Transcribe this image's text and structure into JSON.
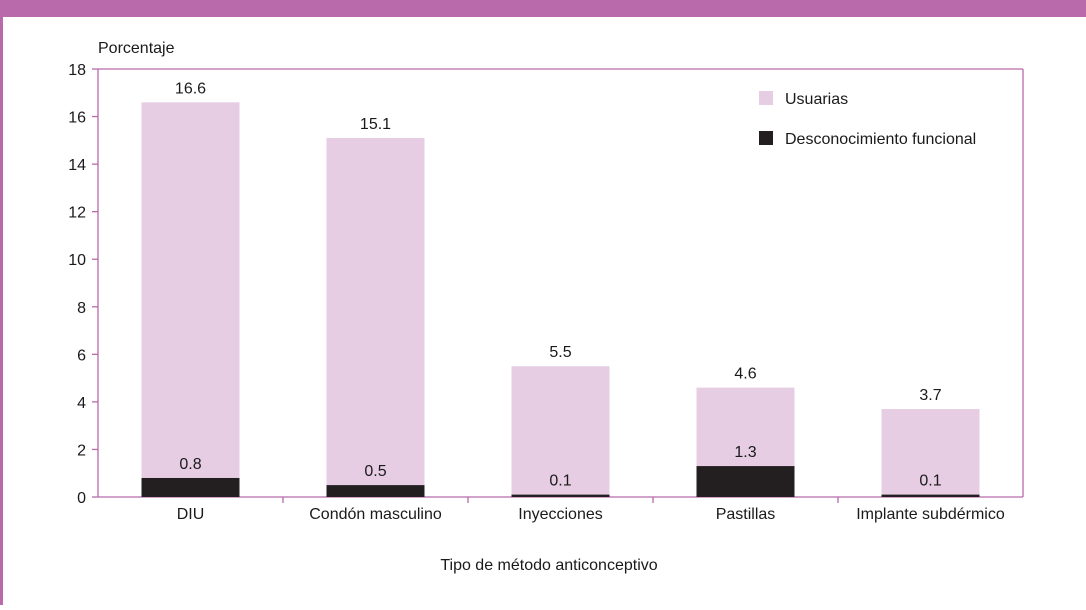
{
  "colors": {
    "frame": "#b86aaa",
    "usuarias": "#e6cde4",
    "desconocimiento": "#231f20",
    "axis": "#b86aaa",
    "text": "#1a1a1a"
  },
  "chart_data": {
    "type": "bar",
    "title": "",
    "xlabel": "Tipo de método anticonceptivo",
    "ylabel": "Porcentaje",
    "ylim": [
      0,
      18
    ],
    "yticks": [
      0,
      2,
      4,
      6,
      8,
      10,
      12,
      14,
      16,
      18
    ],
    "grid": false,
    "legend_position": "top-right",
    "categories": [
      "DIU",
      "Condón masculino",
      "Inyecciones",
      "Pastillas",
      "Implante subdérmico"
    ],
    "series": [
      {
        "name": "Usuarias",
        "values": [
          16.6,
          15.1,
          5.5,
          4.6,
          3.7
        ],
        "labels": [
          "16.6",
          "15.1",
          "5.5",
          "4.6",
          "3.7"
        ]
      },
      {
        "name": "Desconocimiento funcional",
        "values": [
          0.8,
          0.5,
          0.1,
          1.3,
          0.1
        ],
        "labels": [
          "0.8",
          "0.5",
          "0.1",
          "1.3",
          "0.1"
        ]
      }
    ]
  }
}
